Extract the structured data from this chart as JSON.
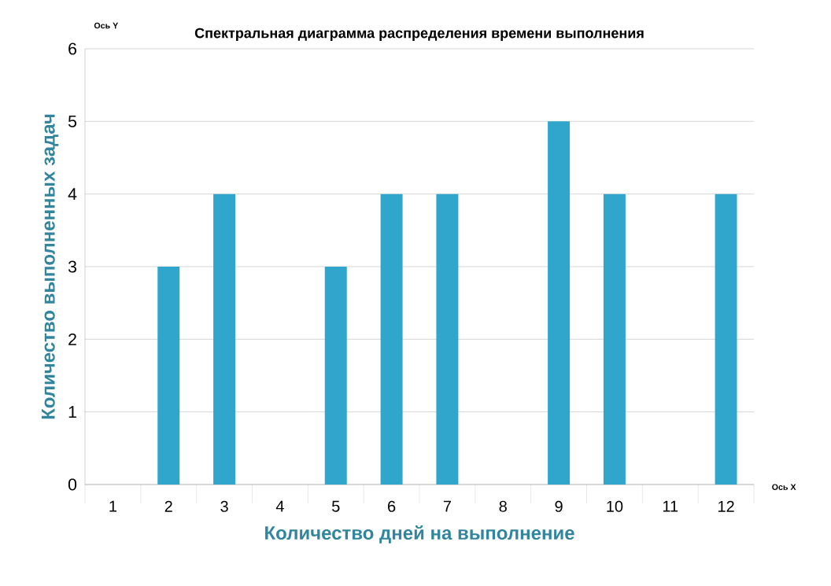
{
  "chart_data": {
    "type": "bar",
    "title": "Спектральная диаграмма распределения времени выполнения",
    "xlabel": "Количество дней на выполнение",
    "ylabel": "Количество выполненных задач",
    "annotations": [
      "Ось Y",
      "Ось X"
    ],
    "categories": [
      "1",
      "2",
      "3",
      "4",
      "5",
      "6",
      "7",
      "8",
      "9",
      "10",
      "11",
      "12"
    ],
    "values": [
      0,
      3,
      4,
      0,
      3,
      4,
      4,
      0,
      5,
      4,
      0,
      4
    ],
    "color": "#31a6cc",
    "ylim": [
      0,
      6
    ],
    "yticks": [
      0,
      1,
      2,
      3,
      4,
      5,
      6
    ],
    "grid": "y"
  }
}
